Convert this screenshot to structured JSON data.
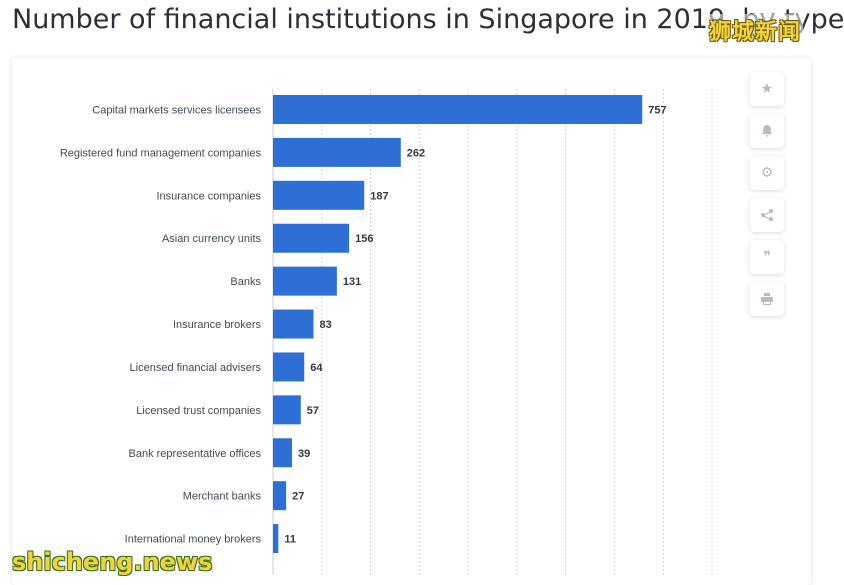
{
  "title": "Number of financial institutions in Singapore in 2019, by type",
  "watermarks": {
    "top": "狮城新闻",
    "bottom": "shicheng.news"
  },
  "side_tools": [
    {
      "name": "star-icon",
      "glyph": "★"
    },
    {
      "name": "bell-icon",
      "glyph": "bell"
    },
    {
      "name": "gear-icon",
      "glyph": "⚙"
    },
    {
      "name": "share-icon",
      "glyph": "share"
    },
    {
      "name": "quote-icon",
      "glyph": "❞"
    },
    {
      "name": "print-icon",
      "glyph": "print"
    }
  ],
  "colors": {
    "bar": "#2e6fd6",
    "grid": "#cfd4db",
    "axis": "#c8cdd4"
  },
  "chart_data": {
    "type": "bar",
    "orientation": "horizontal",
    "categories": [
      "Capital markets services licensees",
      "Registered fund management companies",
      "Insurance companies",
      "Asian currency units",
      "Banks",
      "Insurance brokers",
      "Licensed financial advisers",
      "Licensed trust companies",
      "Bank representative offices",
      "Merchant banks",
      "International money brokers"
    ],
    "values": [
      757,
      262,
      187,
      156,
      131,
      83,
      64,
      57,
      39,
      27,
      11
    ],
    "xlim": [
      0,
      900
    ],
    "grid": true,
    "data_labels": true
  }
}
